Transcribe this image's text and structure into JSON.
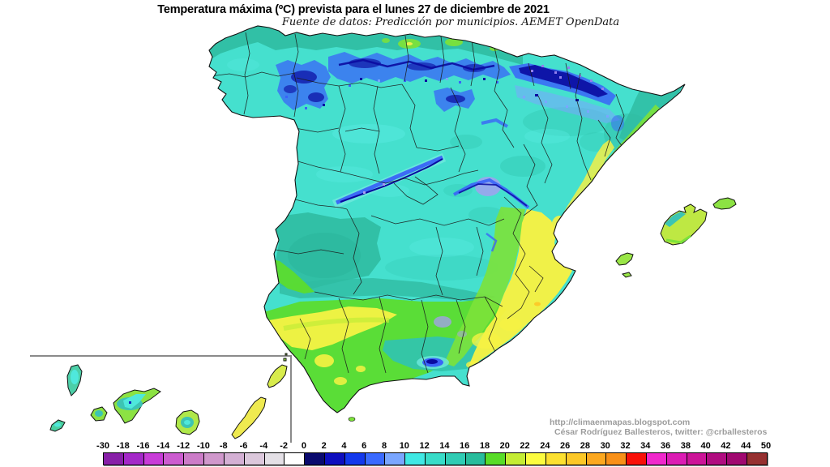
{
  "title": "Temperatura máxima (ºC) prevista para el lunes 27 de diciembre de 2021",
  "subtitle": "Fuente de datos: Predicción por municipios. AEMET OpenData",
  "attribution": {
    "line1": "http://climaenmapas.blogspot.com",
    "line2": "César Rodríguez Ballesteros, twitter: @crballesteros"
  },
  "legend": {
    "tick_labels": [
      "-30",
      "-18",
      "-16",
      "-14",
      "-12",
      "-10",
      "-8",
      "-6",
      "-4",
      "-2",
      "0",
      "2",
      "4",
      "6",
      "8",
      "10",
      "12",
      "14",
      "16",
      "18",
      "20",
      "22",
      "24",
      "26",
      "28",
      "30",
      "32",
      "34",
      "36",
      "38",
      "40",
      "42",
      "44",
      "50"
    ],
    "cell_colors": [
      "#8820A8",
      "#A428C8",
      "#C83CD8",
      "#CC5CD0",
      "#CC7CC8",
      "#D098CC",
      "#D4B0D4",
      "#DCC8DC",
      "#E4E0E6",
      "#FFFFFF",
      "#0A0A6E",
      "#0E0EBE",
      "#1338EC",
      "#3A6AFF",
      "#7AA6FF",
      "#40E8E4",
      "#38DCC8",
      "#30CCB4",
      "#28BC9C",
      "#58DC28",
      "#C4EC34",
      "#FCFC40",
      "#FCE030",
      "#FCC828",
      "#FCA820",
      "#F89018",
      "#F81008",
      "#F028CC",
      "#DC1CB4",
      "#CC1498",
      "#B00C80",
      "#A00870",
      "#963030"
    ]
  },
  "map": {
    "units": "ºC",
    "sea_color": "#FFFFFF",
    "palette": {
      "base_aqua_12_14": "#45E0CE",
      "teal_16_18": "#2FBCA2",
      "teal_14_16": "#35CCB6",
      "cyan_10_12": "#58EAE2",
      "green_18_20": "#5CDC2E",
      "chartreuse_20_22": "#C2EC36",
      "yellow_22_24": "#F6F243",
      "gold_24_26": "#FCC828",
      "blue_6_8": "#3A64F8",
      "navy_0_4": "#0A0AA0",
      "light_blue_8_10": "#7AA6FF",
      "violet_speckle": "#9180EE",
      "lavender_speckle": "#A89CF2",
      "border_line": "#1B1B1B",
      "inset_line": "#8A8A8A"
    },
    "features": [
      "iberian-peninsula",
      "balearic-islands",
      "canary-islands-inset",
      "ceuta",
      "pyrenees-cold-band",
      "cantabrian-cold-band",
      "sistema-central-ridge",
      "iberico-ridge",
      "sierra-nevada"
    ]
  }
}
